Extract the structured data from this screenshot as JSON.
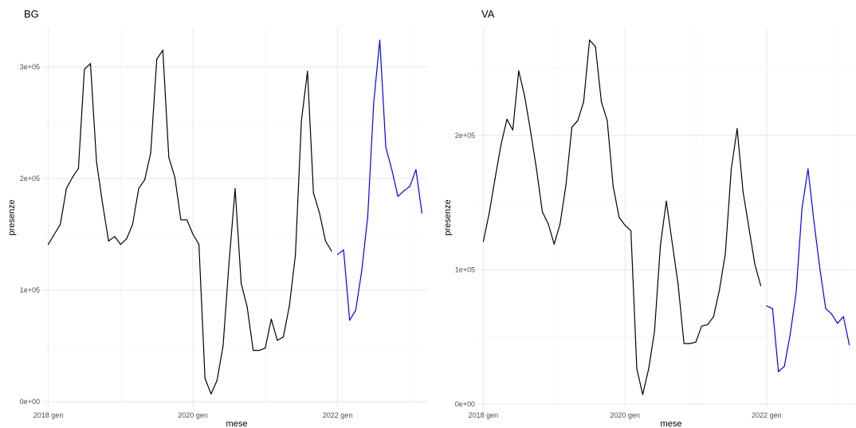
{
  "chart_data": [
    {
      "type": "line",
      "title": "BG",
      "xlabel": "mese",
      "ylabel": "presenze",
      "x_range": [
        "2017-12-01",
        "2023-04-01"
      ],
      "ylim": [
        -5000,
        335000
      ],
      "x_ticks": [
        {
          "date": "2018-01",
          "label": "2018 gen"
        },
        {
          "date": "2020-01",
          "label": "2020 gen"
        },
        {
          "date": "2022-01",
          "label": "2022 gen"
        }
      ],
      "y_ticks": [
        {
          "value": 0,
          "label": "0e+00"
        },
        {
          "value": 100000,
          "label": "1e+05"
        },
        {
          "value": 200000,
          "label": "2e+05"
        },
        {
          "value": 300000,
          "label": "3e+05"
        }
      ],
      "series": [
        {
          "color": "#000000",
          "points": [
            [
              "2018-01",
              141000
            ],
            [
              "2018-02",
              150000
            ],
            [
              "2018-03",
              159000
            ],
            [
              "2018-04",
              191000
            ],
            [
              "2018-05",
              201000
            ],
            [
              "2018-06",
              209000
            ],
            [
              "2018-07",
              298000
            ],
            [
              "2018-08",
              303000
            ],
            [
              "2018-09",
              215000
            ],
            [
              "2018-10",
              178000
            ],
            [
              "2018-11",
              144000
            ],
            [
              "2018-12",
              148000
            ],
            [
              "2019-01",
              141000
            ],
            [
              "2019-02",
              146000
            ],
            [
              "2019-03",
              159000
            ],
            [
              "2019-04",
              191000
            ],
            [
              "2019-05",
              199000
            ],
            [
              "2019-06",
              223000
            ],
            [
              "2019-07",
              307000
            ],
            [
              "2019-08",
              315000
            ],
            [
              "2019-09",
              219000
            ],
            [
              "2019-10",
              201000
            ],
            [
              "2019-11",
              163000
            ],
            [
              "2019-12",
              163000
            ],
            [
              "2020-01",
              150000
            ],
            [
              "2020-02",
              141000
            ],
            [
              "2020-03",
              21000
            ],
            [
              "2020-04",
              7000
            ],
            [
              "2020-05",
              19000
            ],
            [
              "2020-06",
              50000
            ],
            [
              "2020-07",
              125000
            ],
            [
              "2020-08",
              191000
            ],
            [
              "2020-09",
              106000
            ],
            [
              "2020-10",
              85000
            ],
            [
              "2020-11",
              46000
            ],
            [
              "2020-12",
              46000
            ],
            [
              "2021-01",
              48000
            ],
            [
              "2021-02",
              74000
            ],
            [
              "2021-03",
              55000
            ],
            [
              "2021-04",
              58000
            ],
            [
              "2021-05",
              86000
            ],
            [
              "2021-06",
              131000
            ],
            [
              "2021-07",
              252000
            ],
            [
              "2021-08",
              296000
            ],
            [
              "2021-09",
              187000
            ],
            [
              "2021-10",
              169000
            ],
            [
              "2021-11",
              144000
            ],
            [
              "2021-12",
              135000
            ]
          ]
        },
        {
          "color": "#0000ff",
          "points": [
            [
              "2022-01",
              132000
            ],
            [
              "2022-02",
              136000
            ],
            [
              "2022-03",
              73000
            ],
            [
              "2022-04",
              82000
            ],
            [
              "2022-05",
              117000
            ],
            [
              "2022-06",
              166000
            ],
            [
              "2022-07",
              268000
            ],
            [
              "2022-08",
              324000
            ],
            [
              "2022-09",
              228000
            ],
            [
              "2022-10",
              208000
            ],
            [
              "2022-11",
              184000
            ],
            [
              "2022-12",
              189000
            ],
            [
              "2023-01",
              193000
            ],
            [
              "2023-02",
              208000
            ],
            [
              "2023-03",
              169000
            ]
          ]
        }
      ]
    },
    {
      "type": "line",
      "title": "VA",
      "xlabel": "mese",
      "ylabel": "presenze",
      "x_range": [
        "2017-12-01",
        "2023-04-01"
      ],
      "ylim": [
        -2500,
        280000
      ],
      "x_ticks": [
        {
          "date": "2018-01",
          "label": "2018 gen"
        },
        {
          "date": "2020-01",
          "label": "2020 gen"
        },
        {
          "date": "2022-01",
          "label": "2022 gen"
        }
      ],
      "y_ticks": [
        {
          "value": 0,
          "label": "0e+00"
        },
        {
          "value": 100000,
          "label": "1e+05"
        },
        {
          "value": 200000,
          "label": "2e+05"
        }
      ],
      "series": [
        {
          "color": "#000000",
          "points": [
            [
              "2018-01",
              121000
            ],
            [
              "2018-02",
              142000
            ],
            [
              "2018-03",
              168000
            ],
            [
              "2018-04",
              193000
            ],
            [
              "2018-05",
              212000
            ],
            [
              "2018-06",
              204000
            ],
            [
              "2018-07",
              248000
            ],
            [
              "2018-08",
              229000
            ],
            [
              "2018-09",
              203000
            ],
            [
              "2018-10",
              175000
            ],
            [
              "2018-11",
              143000
            ],
            [
              "2018-12",
              134000
            ],
            [
              "2019-01",
              119000
            ],
            [
              "2019-02",
              134000
            ],
            [
              "2019-03",
              163000
            ],
            [
              "2019-04",
              206000
            ],
            [
              "2019-05",
              211000
            ],
            [
              "2019-06",
              225000
            ],
            [
              "2019-07",
              271000
            ],
            [
              "2019-08",
              266000
            ],
            [
              "2019-09",
              225000
            ],
            [
              "2019-10",
              211000
            ],
            [
              "2019-11",
              162000
            ],
            [
              "2019-12",
              139000
            ],
            [
              "2020-01",
              133000
            ],
            [
              "2020-02",
              129000
            ],
            [
              "2020-03",
              26000
            ],
            [
              "2020-04",
              7000
            ],
            [
              "2020-05",
              26000
            ],
            [
              "2020-06",
              54000
            ],
            [
              "2020-07",
              118000
            ],
            [
              "2020-08",
              151000
            ],
            [
              "2020-09",
              120000
            ],
            [
              "2020-10",
              89000
            ],
            [
              "2020-11",
              45000
            ],
            [
              "2020-12",
              45000
            ],
            [
              "2021-01",
              46000
            ],
            [
              "2021-02",
              58000
            ],
            [
              "2021-03",
              59000
            ],
            [
              "2021-04",
              65000
            ],
            [
              "2021-05",
              85000
            ],
            [
              "2021-06",
              112000
            ],
            [
              "2021-07",
              175000
            ],
            [
              "2021-08",
              205000
            ],
            [
              "2021-09",
              158000
            ],
            [
              "2021-10",
              131000
            ],
            [
              "2021-11",
              104000
            ],
            [
              "2021-12",
              88000
            ]
          ]
        },
        {
          "color": "#0000ff",
          "points": [
            [
              "2022-01",
              73000
            ],
            [
              "2022-02",
              71000
            ],
            [
              "2022-03",
              24000
            ],
            [
              "2022-04",
              28000
            ],
            [
              "2022-05",
              52000
            ],
            [
              "2022-06",
              83000
            ],
            [
              "2022-07",
              146000
            ],
            [
              "2022-08",
              175000
            ],
            [
              "2022-09",
              136000
            ],
            [
              "2022-10",
              101000
            ],
            [
              "2022-11",
              71000
            ],
            [
              "2022-12",
              67000
            ],
            [
              "2023-01",
              60000
            ],
            [
              "2023-02",
              65000
            ],
            [
              "2023-03",
              44000
            ]
          ]
        }
      ]
    }
  ]
}
